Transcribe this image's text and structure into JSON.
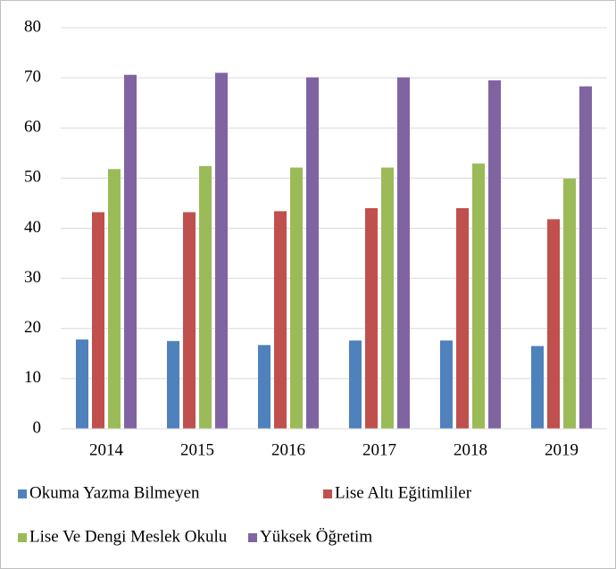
{
  "chart_data": {
    "type": "bar",
    "categories": [
      "2014",
      "2015",
      "2016",
      "2017",
      "2018",
      "2019"
    ],
    "series": [
      {
        "name": "Okuma Yazma Bilmeyen",
        "color": "#4f81bd",
        "values": [
          17.8,
          17.5,
          16.7,
          17.6,
          17.6,
          16.5
        ]
      },
      {
        "name": "Lise Altı Eğitimliler",
        "color": "#c0504d",
        "values": [
          43.2,
          43.2,
          43.4,
          44,
          44,
          41.8
        ]
      },
      {
        "name": "Lise Ve Dengi Meslek Okulu",
        "color": "#9bbb59",
        "values": [
          51.8,
          52.4,
          52.1,
          52.1,
          52.9,
          49.9
        ]
      },
      {
        "name": "Yüksek Öğretim",
        "color": "#8064a2",
        "values": [
          70.6,
          71,
          70.1,
          70.1,
          69.5,
          68.3
        ]
      }
    ],
    "ylim": [
      0,
      80
    ],
    "yticks": [
      0,
      10,
      20,
      30,
      40,
      50,
      60,
      70,
      80
    ],
    "grid": true,
    "legend": "bottom"
  }
}
